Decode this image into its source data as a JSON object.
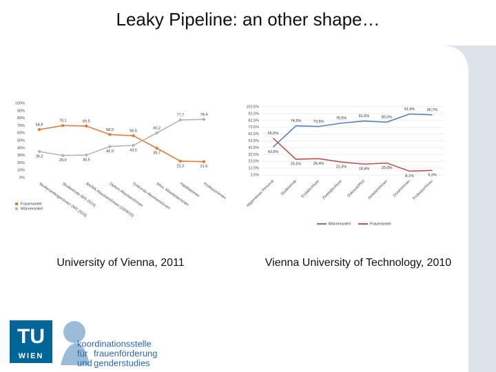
{
  "slide_title": "Leaky Pipeline: an other shape…",
  "chart_data": [
    {
      "type": "line",
      "caption": "University of Vienna, 2011",
      "categories": [
        "Studienanfänger/innen (WS 2010)",
        "Studierende (WS 2010)",
        "BA/MA-Absolvent/innen (2009/10)",
        "Diplom-Absolvent/innen",
        "Doktorats-Absolvent/innen",
        "Wiss. Mitarbeiter/innen",
        "Habilitationen",
        "Professor/innen"
      ],
      "series": [
        {
          "name": "Frauenanteil",
          "color": "#e07b39",
          "values": [
            64.8,
            70.1,
            69.5,
            58.0,
            56.5,
            39.7,
            22.3,
            21.6
          ],
          "value_labels": [
            "64,8",
            "70,1",
            "69,5",
            "58,0",
            "56,5",
            "39,7",
            "22,3",
            "21,6"
          ]
        },
        {
          "name": "Männeranteil",
          "color": "#b4b4b4",
          "values": [
            35.2,
            29.9,
            30.5,
            42.0,
            43.5,
            60.2,
            77.7,
            78.4
          ],
          "value_labels": [
            "35,2",
            "29,9",
            "30,5",
            "42,0",
            "43,5",
            "60,2",
            "77,7",
            "78,4"
          ]
        }
      ],
      "ylim": [
        0,
        100
      ],
      "yticks": [
        {
          "value": 0,
          "label": "0%"
        },
        {
          "value": 10,
          "label": "10%"
        },
        {
          "value": 20,
          "label": "20%"
        },
        {
          "value": 30,
          "label": "30%"
        },
        {
          "value": 40,
          "label": "40%"
        },
        {
          "value": 50,
          "label": "50%"
        },
        {
          "value": 60,
          "label": "60%"
        },
        {
          "value": 70,
          "label": "70%"
        },
        {
          "value": 80,
          "label": "80%"
        },
        {
          "value": 90,
          "label": "90%"
        },
        {
          "value": 100,
          "label": "100%"
        }
      ],
      "legend": "bottom-left"
    },
    {
      "type": "line",
      "caption": "Vienna University of Technology, 2010",
      "categories": [
        "Allgemeines Personal",
        "Studierende",
        "Erstabschluss",
        "Zweitabschluss",
        "Doktorat/PhD",
        "Assistent/innen",
        "Dozent/innen",
        "Professor/innen"
      ],
      "series": [
        {
          "name": "Männeranteil",
          "color": "#4f81bd",
          "values": [
            43.5,
            74.5,
            73.6,
            78.5,
            81.6,
            80.0,
            91.9,
            90.7
          ],
          "value_labels": [
            "43,5%",
            "74,5%",
            "73,6%",
            "78,5%",
            "81,6%",
            "80,0%",
            "91,9%",
            "90,7%"
          ]
        },
        {
          "name": "Frauenanteil",
          "color": "#c0504d",
          "values": [
            56.5,
            25.5,
            26.4,
            21.5,
            18.4,
            20.0,
            8.1,
            9.3
          ],
          "value_labels": [
            "56,5%",
            "25,5%",
            "26,4%",
            "21,5%",
            "18,4%",
            "20,0%",
            "8,1%",
            "9,3%"
          ]
        }
      ],
      "ylim": [
        2.5,
        102.5
      ],
      "yticks": [
        {
          "value": 2.5,
          "label": "2,5%"
        },
        {
          "value": 12.5,
          "label": "12,5%"
        },
        {
          "value": 22.5,
          "label": "22,5%"
        },
        {
          "value": 32.5,
          "label": "32,5%"
        },
        {
          "value": 42.5,
          "label": "42,5%"
        },
        {
          "value": 52.5,
          "label": "52,5%"
        },
        {
          "value": 62.5,
          "label": "62,5%"
        },
        {
          "value": 72.5,
          "label": "72,5%"
        },
        {
          "value": 82.5,
          "label": "82,5%"
        },
        {
          "value": 92.5,
          "label": "92,5%"
        },
        {
          "value": 102.5,
          "label": "102,5%"
        }
      ],
      "legend": "bottom"
    }
  ],
  "logo": {
    "tu": "TU",
    "wien": "WIEN",
    "line1": "koordinationsstelle",
    "line2a": "für",
    "line2b": "frauenförderung",
    "line3a": "und",
    "line3b": "genderstudies"
  }
}
